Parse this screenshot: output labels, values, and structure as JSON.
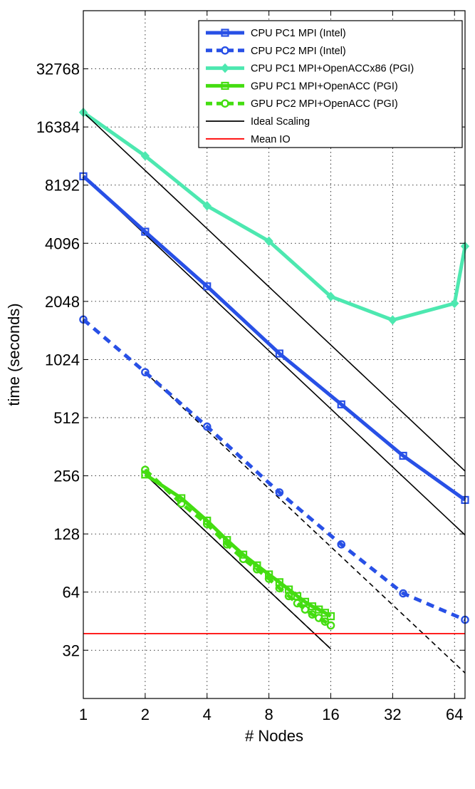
{
  "chart_data": {
    "type": "line",
    "xlabel": "# Nodes",
    "ylabel": "time (seconds)",
    "xscale": "log2",
    "yscale": "log2",
    "xlim": [
      1,
      72
    ],
    "ylim": [
      18,
      65536
    ],
    "xticks": [
      1,
      2,
      4,
      8,
      16,
      32,
      64
    ],
    "xtick_labels": [
      "1",
      "2",
      "4",
      "8",
      "16",
      "32",
      "64"
    ],
    "yticks": [
      32,
      64,
      128,
      256,
      512,
      1024,
      2048,
      4096,
      8192,
      16384,
      32768
    ],
    "ytick_labels": [
      "32",
      "64",
      "128",
      "256",
      "512",
      "1024",
      "2048",
      "4096",
      "8192",
      "16384",
      "32768"
    ],
    "grid": true,
    "legend_position": "top-right",
    "series": [
      {
        "name": "CPU PC1 MPI (Intel)",
        "color": "#2850e6",
        "style": "solid",
        "marker": "square",
        "x": [
          1,
          2,
          4,
          9,
          18,
          36,
          72
        ],
        "y": [
          9100,
          4700,
          2450,
          1100,
          600,
          325,
          192
        ]
      },
      {
        "name": "CPU PC2 MPI (Intel)",
        "color": "#2850e6",
        "style": "dashed",
        "marker": "circle",
        "x": [
          1,
          2,
          4,
          9,
          18,
          36,
          72
        ],
        "y": [
          1650,
          880,
          460,
          210,
          113,
          63,
          46
        ]
      },
      {
        "name": "CPU PC1 MPI+OpenACCx86 (PGI)",
        "color": "#4de8b0",
        "style": "solid",
        "marker": "diamond",
        "x": [
          1,
          2,
          4,
          8,
          16,
          32,
          64,
          72
        ],
        "y": [
          19500,
          11600,
          6400,
          4200,
          2170,
          1640,
          2000,
          3950
        ]
      },
      {
        "name": "GPU PC1 MPI+OpenACC (PGI)",
        "color": "#44dd11",
        "style": "solid",
        "marker": "square",
        "x": [
          2,
          3,
          4,
          5,
          6,
          7,
          8,
          9,
          10,
          11,
          12,
          13,
          14,
          15,
          16
        ],
        "y": [
          260,
          196,
          150,
          119,
          100,
          88,
          79,
          72,
          66,
          61,
          57,
          54,
          52,
          50,
          48
        ]
      },
      {
        "name": "GPU PC2 MPI+OpenACC (PGI)",
        "color": "#44dd11",
        "style": "dashed",
        "marker": "circle",
        "x": [
          2,
          3,
          4,
          5,
          6,
          7,
          8,
          9,
          10,
          11,
          12,
          13,
          14,
          15,
          16
        ],
        "y": [
          275,
          184,
          144,
          113,
          95,
          84,
          75,
          67,
          61,
          56,
          52,
          49,
          47,
          45,
          43
        ]
      },
      {
        "name": "Ideal Scaling",
        "color": "#000000",
        "style": "solid",
        "marker": "none",
        "x": [
          1,
          72
        ],
        "y": [
          19500,
          270.8
        ]
      },
      {
        "name": "Mean IO",
        "color": "#ff0000",
        "style": "solid",
        "marker": "none",
        "x": [
          1,
          72
        ],
        "y": [
          39,
          39
        ]
      }
    ],
    "reference_lines": [
      {
        "color": "#000000",
        "style": "solid",
        "x": [
          1,
          72
        ],
        "y": [
          9100,
          126.4
        ]
      },
      {
        "color": "#000000",
        "style": "dashed",
        "x": [
          2,
          72
        ],
        "y": [
          880,
          24.4
        ]
      },
      {
        "color": "#000000",
        "style": "solid",
        "x": [
          2,
          16
        ],
        "y": [
          260,
          32.5
        ]
      },
      {
        "color": "#000000",
        "style": "dashed",
        "x": [
          2,
          16
        ],
        "y": [
          260,
          32.5
        ]
      }
    ]
  }
}
